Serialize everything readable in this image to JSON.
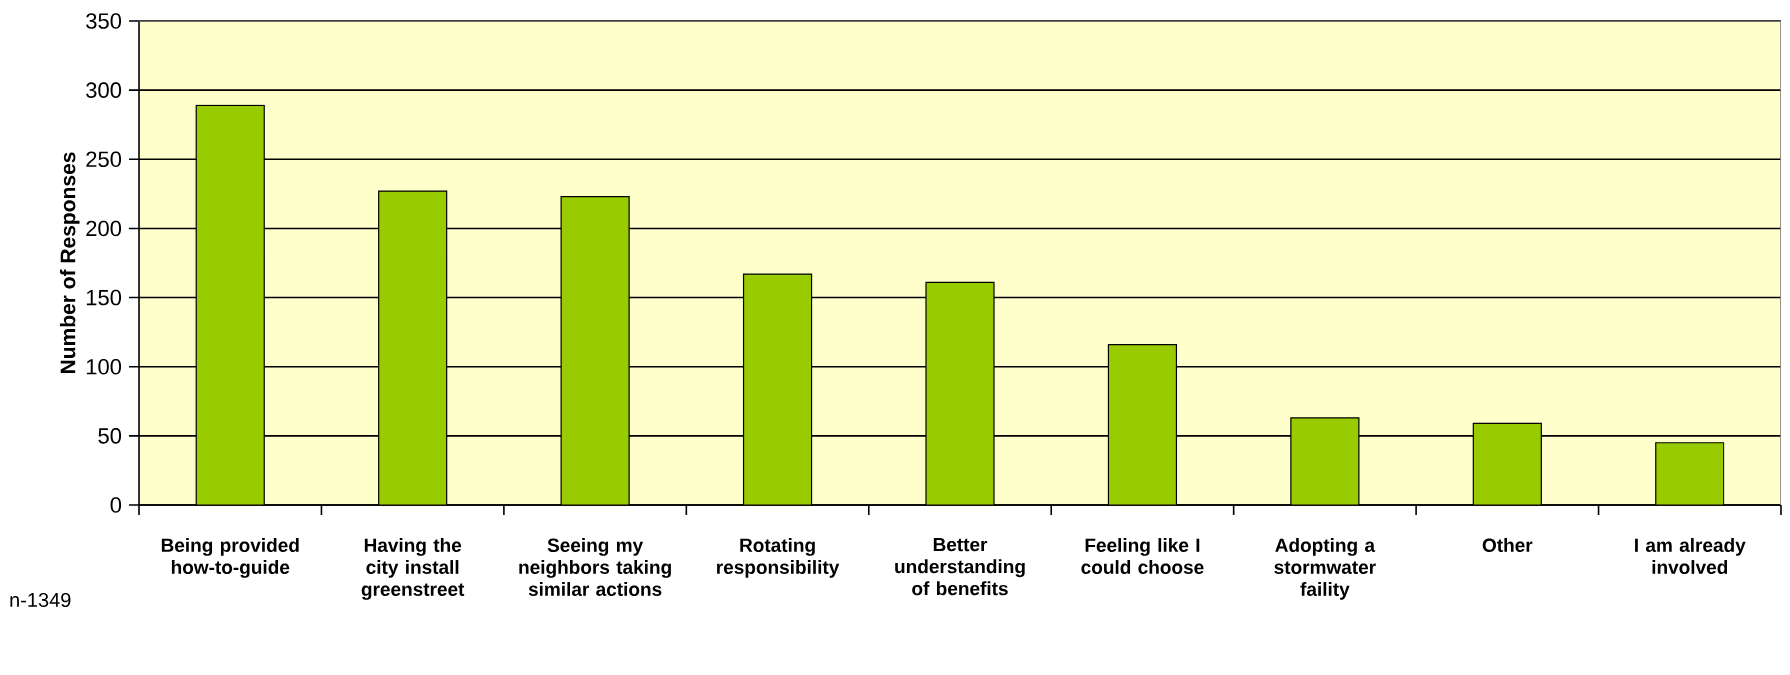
{
  "chart_data": {
    "type": "bar",
    "ylabel": "Number of Responses",
    "categories": [
      "Being provided how-to-guide",
      "Having the city install greenstreet",
      "Seeing my neighbors taking similar actions",
      "Rotating responsibility",
      "Better understanding of benefits",
      "Feeling like I could choose",
      "Adopting a stormwater faility",
      "Other",
      "I am already involved"
    ],
    "values": [
      289,
      227,
      223,
      167,
      161,
      116,
      63,
      59,
      45
    ],
    "color": "#99cc00",
    "ylim": [
      0,
      350
    ],
    "yticks": [
      0,
      50,
      100,
      150,
      200,
      250,
      300,
      350
    ],
    "grid": "y",
    "annotations": [
      "n-1349"
    ]
  }
}
